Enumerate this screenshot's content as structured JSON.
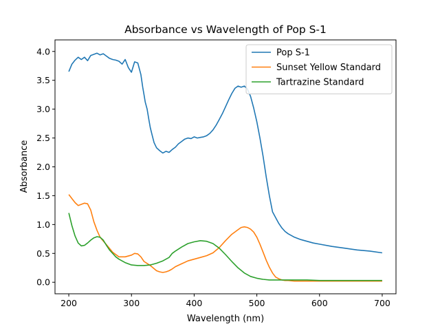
{
  "chart_data": {
    "type": "line",
    "title": "Absorbance vs Wavelength of Pop S-1",
    "xlabel": "Wavelength (nm)",
    "ylabel": "Absorbance",
    "xlim": [
      178,
      722
    ],
    "ylim": [
      -0.2,
      4.2
    ],
    "xticks": [
      200,
      300,
      400,
      500,
      600,
      700
    ],
    "yticks": [
      0.0,
      0.5,
      1.0,
      1.5,
      2.0,
      2.5,
      3.0,
      3.5,
      4.0
    ],
    "xtick_labels": [
      "200",
      "300",
      "400",
      "500",
      "600",
      "700"
    ],
    "ytick_labels": [
      "0.0",
      "0.5",
      "1.0",
      "1.5",
      "2.0",
      "2.5",
      "3.0",
      "3.5",
      "4.0"
    ],
    "grid": false,
    "legend_position": "upper right",
    "series": [
      {
        "name": "Pop S-1",
        "color": "#1f77b4",
        "x": [
          200,
          205,
          210,
          215,
          220,
          225,
          230,
          235,
          240,
          245,
          250,
          255,
          260,
          265,
          270,
          275,
          280,
          285,
          290,
          295,
          300,
          305,
          310,
          315,
          318,
          320,
          322,
          325,
          328,
          330,
          333,
          336,
          340,
          345,
          350,
          355,
          360,
          365,
          370,
          375,
          380,
          385,
          390,
          395,
          400,
          405,
          410,
          415,
          420,
          425,
          430,
          435,
          440,
          445,
          450,
          455,
          460,
          465,
          470,
          475,
          480,
          485,
          490,
          495,
          500,
          505,
          510,
          515,
          520,
          525,
          530,
          535,
          540,
          545,
          550,
          560,
          570,
          580,
          590,
          600,
          620,
          640,
          660,
          680,
          700
        ],
        "y": [
          3.65,
          3.78,
          3.85,
          3.9,
          3.86,
          3.9,
          3.84,
          3.93,
          3.95,
          3.97,
          3.94,
          3.96,
          3.92,
          3.88,
          3.86,
          3.85,
          3.83,
          3.78,
          3.86,
          3.72,
          3.64,
          3.82,
          3.8,
          3.6,
          3.38,
          3.25,
          3.12,
          3.0,
          2.8,
          2.68,
          2.55,
          2.42,
          2.33,
          2.28,
          2.24,
          2.27,
          2.25,
          2.3,
          2.34,
          2.4,
          2.44,
          2.48,
          2.5,
          2.49,
          2.52,
          2.5,
          2.51,
          2.52,
          2.54,
          2.58,
          2.64,
          2.72,
          2.82,
          2.92,
          3.04,
          3.16,
          3.27,
          3.36,
          3.4,
          3.38,
          3.4,
          3.35,
          3.22,
          3.02,
          2.78,
          2.5,
          2.18,
          1.82,
          1.5,
          1.22,
          1.12,
          1.02,
          0.94,
          0.88,
          0.84,
          0.78,
          0.74,
          0.71,
          0.68,
          0.66,
          0.62,
          0.59,
          0.56,
          0.54,
          0.51
        ]
      },
      {
        "name": "Sunset Yellow Standard",
        "color": "#ff7f0e",
        "x": [
          200,
          205,
          210,
          215,
          220,
          225,
          230,
          235,
          240,
          245,
          250,
          260,
          270,
          280,
          290,
          300,
          305,
          310,
          315,
          320,
          330,
          340,
          345,
          350,
          355,
          360,
          365,
          370,
          380,
          390,
          400,
          410,
          420,
          430,
          440,
          450,
          460,
          470,
          475,
          480,
          485,
          490,
          495,
          500,
          505,
          510,
          515,
          520,
          525,
          530,
          535,
          540,
          545,
          550,
          560,
          580,
          600,
          650,
          700
        ],
        "y": [
          1.52,
          1.45,
          1.38,
          1.33,
          1.35,
          1.37,
          1.36,
          1.25,
          1.05,
          0.9,
          0.78,
          0.65,
          0.52,
          0.44,
          0.44,
          0.47,
          0.5,
          0.49,
          0.44,
          0.36,
          0.29,
          0.2,
          0.18,
          0.17,
          0.18,
          0.2,
          0.23,
          0.27,
          0.32,
          0.37,
          0.4,
          0.43,
          0.46,
          0.51,
          0.6,
          0.72,
          0.83,
          0.91,
          0.95,
          0.96,
          0.95,
          0.92,
          0.87,
          0.78,
          0.66,
          0.52,
          0.38,
          0.26,
          0.16,
          0.09,
          0.06,
          0.04,
          0.03,
          0.03,
          0.02,
          0.02,
          0.02,
          0.02,
          0.02
        ]
      },
      {
        "name": "Tartrazine Standard",
        "color": "#2ca02c",
        "x": [
          200,
          205,
          210,
          215,
          220,
          225,
          230,
          235,
          240,
          245,
          250,
          255,
          260,
          265,
          270,
          275,
          280,
          290,
          300,
          310,
          320,
          330,
          340,
          350,
          360,
          365,
          370,
          380,
          390,
          400,
          410,
          420,
          430,
          440,
          450,
          460,
          470,
          480,
          490,
          500,
          510,
          520,
          530,
          540,
          550,
          560,
          580,
          600,
          650,
          700
        ],
        "y": [
          1.2,
          0.98,
          0.8,
          0.68,
          0.63,
          0.64,
          0.68,
          0.73,
          0.77,
          0.79,
          0.78,
          0.73,
          0.64,
          0.56,
          0.5,
          0.44,
          0.4,
          0.34,
          0.3,
          0.29,
          0.29,
          0.3,
          0.33,
          0.37,
          0.43,
          0.5,
          0.54,
          0.61,
          0.67,
          0.7,
          0.72,
          0.71,
          0.67,
          0.59,
          0.48,
          0.36,
          0.25,
          0.16,
          0.1,
          0.07,
          0.05,
          0.04,
          0.04,
          0.04,
          0.04,
          0.04,
          0.04,
          0.03,
          0.03,
          0.03
        ]
      }
    ]
  }
}
